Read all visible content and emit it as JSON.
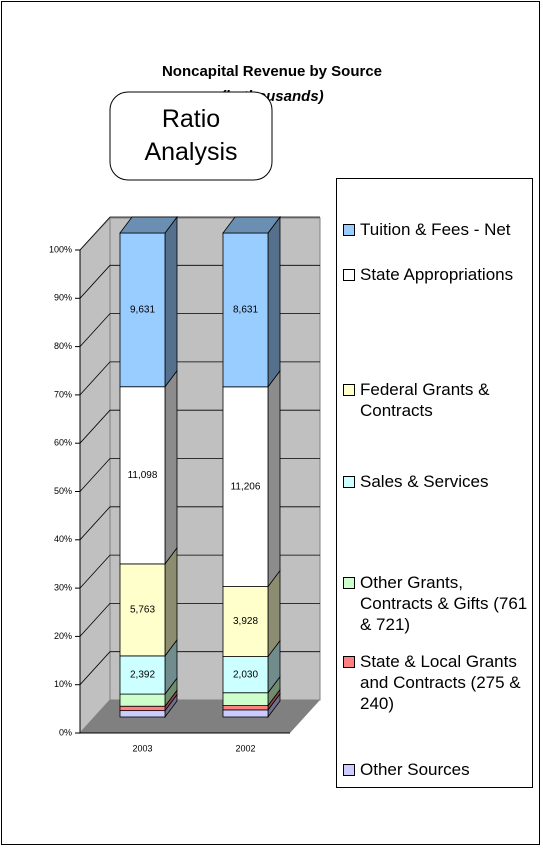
{
  "badge": "Ratio Analysis",
  "chart_data": {
    "type": "bar",
    "stacking": "percent",
    "title": "Noncapital Revenue by Source",
    "subtitle": "(in thousands)",
    "categories": [
      "2003",
      "2002"
    ],
    "series": [
      {
        "name": "Other Sources",
        "color": "#ccccff",
        "values": [
          400,
          400
        ]
      },
      {
        "name": "State & Local Grants and Contracts (275 & 240)",
        "color": "#ff8080",
        "values": [
          275,
          240
        ]
      },
      {
        "name": "Other Grants, Contracts & Gifts (761 & 721)",
        "color": "#ccffcc",
        "values": [
          761,
          721
        ]
      },
      {
        "name": "Sales & Services",
        "color": "#ccffff",
        "values": [
          2392,
          2030
        ],
        "value_labels": [
          "2,392",
          "2,030"
        ]
      },
      {
        "name": "Federal Grants & Contracts",
        "color": "#ffffcc",
        "values": [
          5763,
          3928
        ],
        "value_labels": [
          "5,763",
          "3,928"
        ]
      },
      {
        "name": "State Appropriations",
        "color": "#ffffff",
        "values": [
          11098,
          11206
        ],
        "value_labels": [
          "11,098",
          "11,206"
        ]
      },
      {
        "name": "Tuition & Fees - Net",
        "color": "#99ccff",
        "values": [
          9631,
          8631
        ],
        "value_labels": [
          "9,631",
          "8,631"
        ]
      }
    ],
    "ylim": [
      0,
      100
    ],
    "yticks": [
      {
        "value": 0,
        "label": "0%"
      },
      {
        "value": 10,
        "label": "10%"
      },
      {
        "value": 20,
        "label": "20%"
      },
      {
        "value": 30,
        "label": "30%"
      },
      {
        "value": 40,
        "label": "40%"
      },
      {
        "value": 50,
        "label": "50%"
      },
      {
        "value": 60,
        "label": "60%"
      },
      {
        "value": 70,
        "label": "70%"
      },
      {
        "value": 80,
        "label": "80%"
      },
      {
        "value": 90,
        "label": "90%"
      },
      {
        "value": 100,
        "label": "100%"
      }
    ],
    "grid": true,
    "legend": "right"
  }
}
